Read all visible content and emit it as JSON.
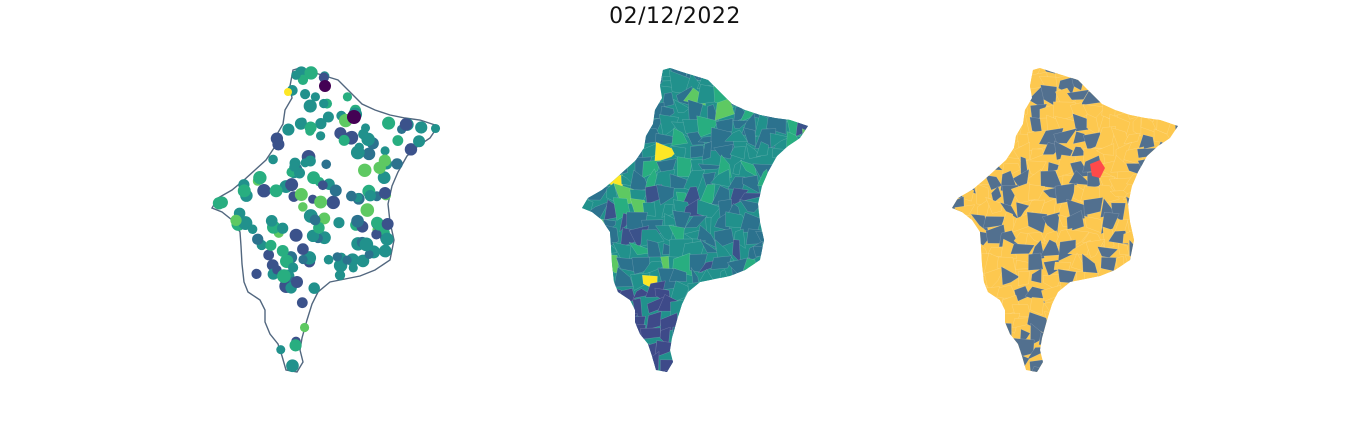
{
  "title": "02/12/2022",
  "colors": {
    "outline": "#52677f",
    "viridis": [
      "#440154",
      "#3b528b",
      "#21918c",
      "#5ec962",
      "#fde725"
    ],
    "cat_blue": "#52708f",
    "cat_yellow": "#fdc84f",
    "cat_red": "#ff4a4a"
  },
  "panels": [
    "points-on-outline",
    "choropleth-viridis",
    "categorical-map"
  ]
}
